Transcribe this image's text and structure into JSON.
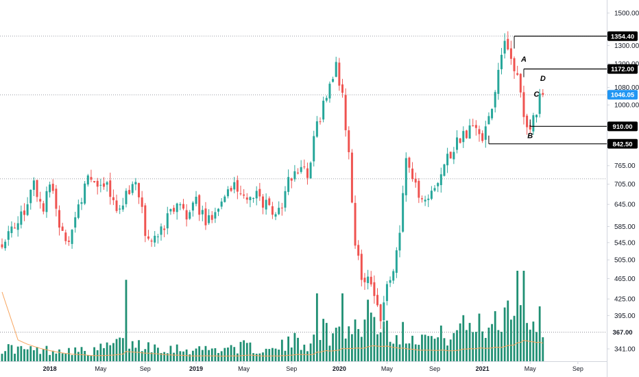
{
  "chart_data": {
    "type": "candlestick",
    "title": "",
    "xlabel": "",
    "ylabel": "",
    "y_scale": "log",
    "ylim": [
      310,
      1620
    ],
    "y_ticks": [
      "1500.00",
      "1300.00",
      "1200.00",
      "1080.00",
      "1000.00",
      "765.00",
      "705.00",
      "645.00",
      "585.00",
      "545.00",
      "505.00",
      "465.00",
      "425.00",
      "395.00",
      "341.00"
    ],
    "x_ticks": [
      "2018",
      "May",
      "Sep",
      "2019",
      "May",
      "Sep",
      "2020",
      "May",
      "Sep",
      "2021",
      "May",
      "Sep"
    ],
    "grid": false,
    "colors": {
      "up": "#26a69a",
      "down": "#ef5350",
      "volume_up": "#1f8f73",
      "volume_down": "#1f8f73",
      "volume_ma": "#f7a35c",
      "last_price": "#2196f3",
      "level_tag": "#000000"
    },
    "price_path": [
      [
        0,
        540
      ],
      [
        6,
        590
      ],
      [
        11,
        700
      ],
      [
        14,
        640
      ],
      [
        16,
        720
      ],
      [
        19,
        575
      ],
      [
        22,
        560
      ],
      [
        25,
        640
      ],
      [
        28,
        720
      ],
      [
        31,
        690
      ],
      [
        34,
        700
      ],
      [
        37,
        610
      ],
      [
        40,
        665
      ],
      [
        43,
        720
      ],
      [
        46,
        570
      ],
      [
        48,
        535
      ],
      [
        50,
        560
      ],
      [
        53,
        610
      ],
      [
        56,
        640
      ],
      [
        59,
        620
      ],
      [
        62,
        650
      ],
      [
        65,
        600
      ],
      [
        68,
        630
      ],
      [
        72,
        700
      ],
      [
        75,
        690
      ],
      [
        78,
        670
      ],
      [
        81,
        675
      ],
      [
        84,
        640
      ],
      [
        88,
        620
      ],
      [
        91,
        710
      ],
      [
        94,
        750
      ],
      [
        97,
        740
      ],
      [
        100,
        905
      ],
      [
        102,
        1000
      ],
      [
        104,
        1120
      ],
      [
        106,
        1180
      ],
      [
        108,
        1040
      ],
      [
        110,
        800
      ],
      [
        112,
        540
      ],
      [
        114,
        460
      ],
      [
        116,
        480
      ],
      [
        118,
        430
      ],
      [
        120,
        380
      ],
      [
        122,
        450
      ],
      [
        124,
        470
      ],
      [
        126,
        560
      ],
      [
        128,
        800
      ],
      [
        131,
        700
      ],
      [
        134,
        650
      ],
      [
        137,
        680
      ],
      [
        140,
        780
      ],
      [
        143,
        830
      ],
      [
        146,
        870
      ],
      [
        149,
        900
      ],
      [
        152,
        850
      ],
      [
        155,
        1000
      ],
      [
        157,
        1180
      ],
      [
        159,
        1310
      ],
      [
        161,
        1200
      ],
      [
        163,
        1160
      ],
      [
        165,
        950
      ],
      [
        167,
        910
      ],
      [
        169,
        980
      ],
      [
        170,
        1046.05
      ]
    ],
    "volume_path": [
      [
        0,
        0.15
      ],
      [
        10,
        0.12
      ],
      [
        20,
        0.13
      ],
      [
        28,
        0.1
      ],
      [
        36,
        0.2
      ],
      [
        44,
        0.18
      ],
      [
        52,
        0.15
      ],
      [
        60,
        0.13
      ],
      [
        68,
        0.14
      ],
      [
        76,
        0.16
      ],
      [
        84,
        0.11
      ],
      [
        92,
        0.22
      ],
      [
        96,
        0.2
      ],
      [
        100,
        0.35
      ],
      [
        104,
        0.28
      ],
      [
        108,
        0.4
      ],
      [
        112,
        0.38
      ],
      [
        116,
        0.45
      ],
      [
        120,
        0.42
      ],
      [
        124,
        0.3
      ],
      [
        128,
        0.32
      ],
      [
        132,
        0.28
      ],
      [
        136,
        0.25
      ],
      [
        140,
        0.3
      ],
      [
        144,
        0.35
      ],
      [
        148,
        0.4
      ],
      [
        152,
        0.38
      ],
      [
        156,
        0.5
      ],
      [
        160,
        0.62
      ],
      [
        162,
        0.95
      ],
      [
        164,
        0.55
      ],
      [
        166,
        0.45
      ],
      [
        168,
        0.5
      ],
      [
        170,
        0.35
      ]
    ],
    "volume_spikes": [
      [
        39,
        0.9
      ],
      [
        99,
        0.75
      ],
      [
        107,
        0.75
      ],
      [
        115,
        0.68
      ],
      [
        164,
        1.0
      ],
      [
        163,
        0.62
      ]
    ],
    "last_price": "1046.05",
    "levels": [
      {
        "label": "1354.40",
        "value": 1354.4,
        "from_bar": 161
      },
      {
        "label": "1172.00",
        "value": 1172.0,
        "from_bar": 164
      },
      {
        "label": "910.00",
        "value": 910.0,
        "from_bar": 166
      },
      {
        "label": "842.50",
        "value": 842.5,
        "from_bar": 153
      },
      {
        "label": "367.00",
        "value": 367.0,
        "from_bar": 0
      }
    ],
    "dotted_guides": [
      1354.4,
      1046.05,
      722,
      367
    ],
    "annotations": [
      {
        "label": "A",
        "bar": 164,
        "value": 1225
      },
      {
        "label": "B",
        "bar": 166,
        "value": 875
      },
      {
        "label": "C",
        "bar": 168,
        "value": 1050
      },
      {
        "label": "D",
        "bar": 170,
        "value": 1125
      }
    ],
    "volume_ma_start": 0.9
  }
}
